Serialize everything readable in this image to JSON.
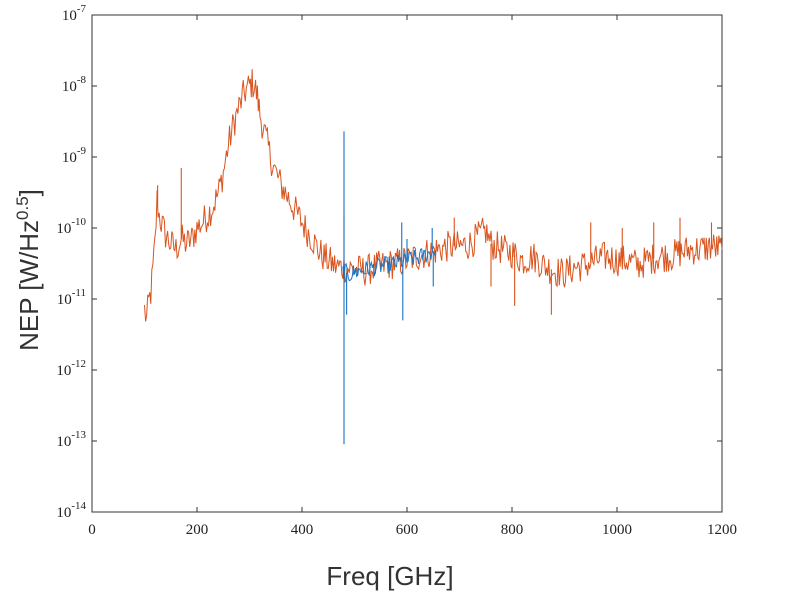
{
  "chart_data": {
    "type": "line",
    "xlabel": "Freq [GHz]",
    "ylabel_main": "NEP [W/Hz",
    "ylabel_sup": "0.5",
    "ylabel_tail": "]",
    "xlim": [
      0,
      1200
    ],
    "ylim_log10": [
      -14,
      -7
    ],
    "yscale": "log",
    "grid": false,
    "x_ticks": [
      0,
      200,
      400,
      600,
      800,
      1000,
      1200
    ],
    "x_tick_labels": [
      "0",
      "200",
      "400",
      "600",
      "800",
      "1000",
      "1200"
    ],
    "y_ticks_exp": [
      -14,
      -13,
      -12,
      -11,
      -10,
      -9,
      -8,
      -7
    ],
    "y_tick_labels": [
      {
        "base": "10",
        "exp": "-14"
      },
      {
        "base": "10",
        "exp": "-13"
      },
      {
        "base": "10",
        "exp": "-12"
      },
      {
        "base": "10",
        "exp": "-11"
      },
      {
        "base": "10",
        "exp": "-10"
      },
      {
        "base": "10",
        "exp": "-9"
      },
      {
        "base": "10",
        "exp": "-8"
      },
      {
        "base": "10",
        "exp": "-7"
      }
    ],
    "series": [
      {
        "color": "#d9541e",
        "x": [
          100,
          104,
          108,
          112,
          116,
          120,
          124,
          128,
          132,
          140,
          150,
          160,
          170,
          180,
          190,
          200,
          210,
          220,
          230,
          240,
          250,
          260,
          270,
          280,
          290,
          300,
          305,
          310,
          315,
          320,
          330,
          340,
          350,
          360,
          370,
          380,
          390,
          400,
          410,
          420,
          430,
          440,
          450,
          460,
          470,
          480,
          490,
          500,
          520,
          540,
          560,
          580,
          600,
          620,
          640,
          660,
          680,
          700,
          720,
          740,
          750,
          760,
          780,
          800,
          820,
          840,
          860,
          880,
          900,
          920,
          940,
          960,
          980,
          1000,
          1020,
          1040,
          1060,
          1080,
          1100,
          1120,
          1140,
          1160,
          1180,
          1200
        ],
        "y": [
          7e-12,
          5e-12,
          9e-12,
          1.2e-11,
          2.5e-11,
          6e-11,
          2.5e-10,
          1.5e-10,
          1.2e-10,
          8e-11,
          6e-11,
          5e-11,
          7e-11,
          6e-11,
          7e-11,
          1e-10,
          1.2e-10,
          1.5e-10,
          2e-10,
          3e-10,
          6e-10,
          1.5e-09,
          3e-09,
          5e-09,
          8e-09,
          1e-08,
          1.1e-08,
          1e-08,
          7e-09,
          4e-09,
          2e-09,
          1e-09,
          6e-10,
          4e-10,
          3e-10,
          2.2e-10,
          1.6e-10,
          1.2e-10,
          9e-11,
          7e-11,
          5e-11,
          4e-11,
          3.5e-11,
          3e-11,
          2.8e-11,
          2.8e-11,
          2.7e-11,
          2.6e-11,
          2.5e-11,
          2.8e-11,
          3e-11,
          3.2e-11,
          3.5e-11,
          4e-11,
          4.5e-11,
          5e-11,
          5.5e-11,
          5.5e-11,
          6e-11,
          8e-11,
          9e-11,
          6e-11,
          5e-11,
          4.5e-11,
          3.5e-11,
          4e-11,
          3e-11,
          2.5e-11,
          2.3e-11,
          2.8e-11,
          3e-11,
          3.5e-11,
          4e-11,
          3.5e-11,
          3.5e-11,
          3e-11,
          3.5e-11,
          4e-11,
          4e-11,
          4.5e-11,
          5e-11,
          5e-11,
          5.5e-11,
          5e-11
        ],
        "spikes": [
          {
            "x": 125,
            "y": 4e-10
          },
          {
            "x": 170,
            "y": 7e-10
          },
          {
            "x": 480,
            "y": 1.5e-10
          },
          {
            "x": 690,
            "y": 1.4e-10
          },
          {
            "x": 805,
            "y": 8e-12
          },
          {
            "x": 760,
            "y": 1.5e-11
          },
          {
            "x": 875,
            "y": 6e-12
          },
          {
            "x": 1120,
            "y": 1.4e-10
          },
          {
            "x": 1180,
            "y": 1.2e-10
          },
          {
            "x": 1070,
            "y": 1.2e-10
          },
          {
            "x": 1010,
            "y": 1e-10
          },
          {
            "x": 950,
            "y": 1.2e-10
          }
        ]
      },
      {
        "color": "#1a73c4",
        "x": [
          478,
          490,
          500,
          520,
          540,
          560,
          580,
          600,
          620,
          640,
          655
        ],
        "y": [
          2.5e-11,
          2.2e-11,
          2.4e-11,
          2.6e-11,
          2.8e-11,
          3e-11,
          3.2e-11,
          3.5e-11,
          3.8e-11,
          4.3e-11,
          5e-11
        ],
        "spikes": [
          {
            "x": 480,
            "y": 2.3e-09
          },
          {
            "x": 480,
            "y": 9e-14
          },
          {
            "x": 485,
            "y": 6e-12
          },
          {
            "x": 590,
            "y": 1.2e-10
          },
          {
            "x": 592,
            "y": 5e-12
          },
          {
            "x": 600,
            "y": 7e-11
          },
          {
            "x": 648,
            "y": 1e-10
          },
          {
            "x": 650,
            "y": 1.5e-11
          }
        ]
      }
    ]
  }
}
